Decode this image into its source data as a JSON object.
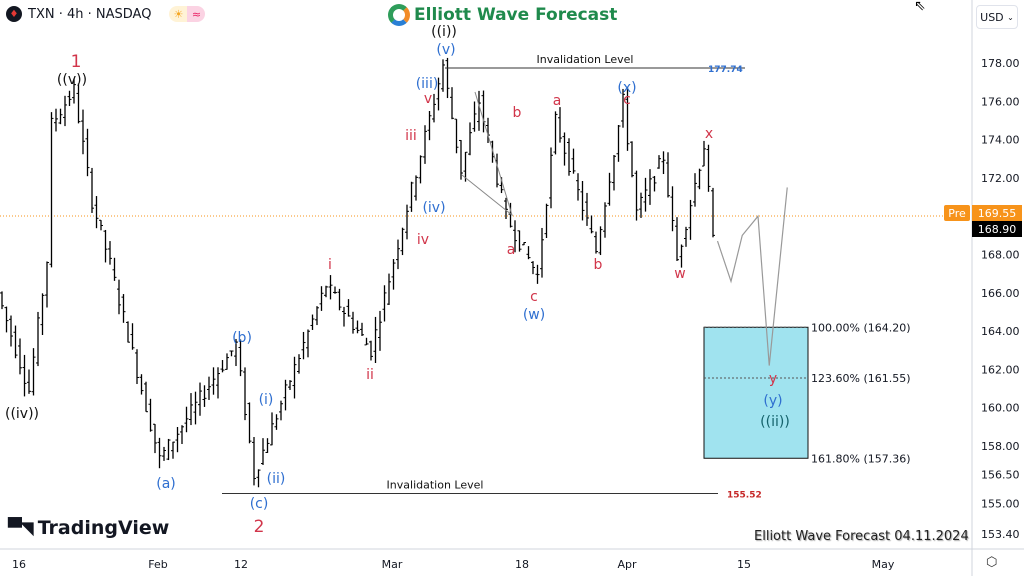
{
  "header": {
    "symbol": "TXN · 4h · NASDAQ",
    "logo_text": "Elliott Wave Forecast",
    "currency": "USD",
    "sun_icon": "☀",
    "wave_icon": "≈"
  },
  "footer": {
    "brand": "TradingView",
    "watermark": "Elliott Wave Forecast 04.11.2024"
  },
  "colors": {
    "red": "#d1354a",
    "blue": "#2f6fd0",
    "black": "#111111",
    "teal": "#14626b",
    "box": "#a0e3ef",
    "pre": "#f7931a"
  },
  "chart_data": {
    "type": "ohlc",
    "symbol": "TXN",
    "interval": "4h",
    "ylim": [
      153.4,
      179.5
    ],
    "y_ticks": [
      "178.00",
      "176.00",
      "174.00",
      "172.00",
      "168.00",
      "166.00",
      "164.00",
      "162.00",
      "160.00",
      "158.00",
      "156.50",
      "155.00",
      "153.40"
    ],
    "x_ticks": [
      "16",
      "Feb",
      "12",
      "Mar",
      "18",
      "Apr",
      "15",
      "May"
    ],
    "price_pivots": [
      [
        0,
        166
      ],
      [
        7,
        160.9
      ],
      [
        11,
        167.7
      ],
      [
        12,
        174.8
      ],
      [
        17,
        176.6
      ],
      [
        21,
        170.8
      ],
      [
        25,
        167.5
      ],
      [
        36,
        157.3
      ],
      [
        53,
        163.3
      ],
      [
        57,
        156.5
      ],
      [
        73,
        166.4
      ],
      [
        83,
        163
      ],
      [
        99,
        177.9
      ],
      [
        103,
        172.4
      ],
      [
        107,
        176
      ],
      [
        113,
        170
      ],
      [
        120,
        166.9
      ],
      [
        124,
        175
      ],
      [
        133,
        168.2
      ],
      [
        139,
        176
      ],
      [
        142,
        170.2
      ],
      [
        148,
        173.1
      ],
      [
        151,
        167.7
      ],
      [
        157,
        173.7
      ],
      [
        159,
        168.7
      ]
    ],
    "last_price": "168.90",
    "pre_label": "Pre",
    "pre_price": "169.55",
    "invalidation": [
      {
        "label": "Invalidation Level",
        "value": "177.74",
        "price": 177.74
      },
      {
        "label": "Invalidation Level",
        "value": "155.52",
        "price": 155.52
      }
    ],
    "fib_box": {
      "levels": [
        {
          "text": "100.00% (164.20)",
          "price": 164.2
        },
        {
          "text": "123.60% (161.55)",
          "price": 161.55
        },
        {
          "text": "161.80% (157.36)",
          "price": 157.36
        }
      ]
    },
    "projection": [
      [
        159,
        168.7
      ],
      [
        162,
        166.6
      ],
      [
        164.5,
        169
      ],
      [
        168,
        170
      ],
      [
        170.5,
        162.2
      ],
      [
        174.5,
        171.5
      ]
    ],
    "wave_labels": [
      {
        "t": "1",
        "c": "red"
      },
      {
        "t": "((v))",
        "c": "black"
      },
      {
        "t": "((iv))",
        "c": "black"
      },
      {
        "t": "(a)",
        "c": "blue"
      },
      {
        "t": "(b)",
        "c": "blue"
      },
      {
        "t": "(c)",
        "c": "blue"
      },
      {
        "t": "2",
        "c": "red"
      },
      {
        "t": "(i)",
        "c": "blue"
      },
      {
        "t": "(ii)",
        "c": "blue"
      },
      {
        "t": "i",
        "c": "red"
      },
      {
        "t": "ii",
        "c": "red"
      },
      {
        "t": "iii",
        "c": "red"
      },
      {
        "t": "iv",
        "c": "red"
      },
      {
        "t": "(iv)",
        "c": "blue"
      },
      {
        "t": "v",
        "c": "red"
      },
      {
        "t": "(iii)",
        "c": "blue"
      },
      {
        "t": "(v)",
        "c": "blue"
      },
      {
        "t": "((i))",
        "c": "black"
      },
      {
        "t": "b",
        "c": "red"
      },
      {
        "t": "a",
        "c": "red"
      },
      {
        "t": "c",
        "c": "red"
      },
      {
        "t": "(w)",
        "c": "blue"
      },
      {
        "t": "a",
        "c": "red"
      },
      {
        "t": "(x)",
        "c": "blue"
      },
      {
        "t": "c",
        "c": "red"
      },
      {
        "t": "b",
        "c": "red"
      },
      {
        "t": "w",
        "c": "red"
      },
      {
        "t": "x",
        "c": "red"
      },
      {
        "t": "y",
        "c": "red"
      },
      {
        "t": "(y)",
        "c": "blue"
      },
      {
        "t": "((ii))",
        "c": "teal"
      }
    ]
  }
}
